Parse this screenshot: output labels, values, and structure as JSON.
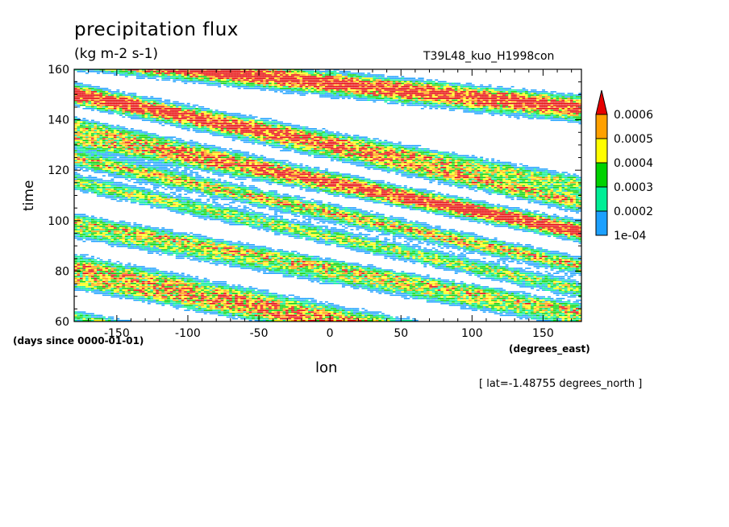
{
  "chart_data": {
    "type": "heatmap",
    "title": "precipitation flux",
    "units": "(kg m-2 s-1)",
    "run_id": "T39L48_kuo_H1998con",
    "xlabel": "lon",
    "x_units": "(degrees_east)",
    "ylabel": "time",
    "y_units": "(days since 0000-01-01)",
    "annotation": "[ lat=-1.48755 degrees_north ]",
    "xlim": [
      -180,
      177
    ],
    "ylim": [
      60,
      160
    ],
    "x_ticks": [
      -150,
      -100,
      -50,
      0,
      50,
      100,
      150
    ],
    "x_tick_labels": [
      "-150",
      "-100",
      "-50",
      "0",
      "50",
      "100",
      "150"
    ],
    "y_ticks": [
      60,
      80,
      100,
      120,
      140,
      160
    ],
    "y_tick_labels": [
      "60",
      "80",
      "100",
      "120",
      "140",
      "160"
    ],
    "colorbar": {
      "levels": [
        0.0001,
        0.0002,
        0.0003,
        0.0004,
        0.0005,
        0.0006
      ],
      "labels": [
        "1e-04",
        "0.0002",
        "0.0003",
        "0.0004",
        "0.0005",
        "0.0006"
      ],
      "colors": [
        "#1ca0ff",
        "#00ee96",
        "#00d200",
        "#fffe00",
        "#ffa000",
        "#e60000"
      ],
      "extend": "max"
    },
    "bands": [
      {
        "t0": 150,
        "lon0": -180,
        "slope": -0.12,
        "width": 3.5,
        "amp": 1.0
      },
      {
        "t0": 132,
        "lon0": -180,
        "slope": -0.1,
        "width": 3.0,
        "amp": 0.9
      },
      {
        "t0": 121,
        "lon0": -150,
        "slope": -0.12,
        "width": 3.0,
        "amp": 1.0
      },
      {
        "t0": 95,
        "lon0": -170,
        "slope": -0.1,
        "width": 3.0,
        "amp": 0.7
      },
      {
        "t0": 82,
        "lon0": -180,
        "slope": -0.11,
        "width": 4.0,
        "amp": 1.0
      },
      {
        "t0": 70,
        "lon0": -120,
        "slope": -0.1,
        "width": 3.0,
        "amp": 0.8
      },
      {
        "t0": 62,
        "lon0": -180,
        "slope": -0.1,
        "width": 2.0,
        "amp": 0.7
      },
      {
        "t0": 155,
        "lon0": 0,
        "slope": -0.05,
        "width": 3.0,
        "amp": 0.7
      },
      {
        "t0": 148,
        "lon0": 100,
        "slope": -0.06,
        "width": 4.0,
        "amp": 1.1
      },
      {
        "t0": 126,
        "lon0": 60,
        "slope": -0.1,
        "width": 3.0,
        "amp": 0.8
      },
      {
        "t0": 110,
        "lon0": 50,
        "slope": -0.12,
        "width": 3.0,
        "amp": 0.9
      },
      {
        "t0": 84,
        "lon0": 80,
        "slope": -0.12,
        "width": 3.0,
        "amp": 0.8
      },
      {
        "t0": 68,
        "lon0": 140,
        "slope": -0.1,
        "width": 2.5,
        "amp": 0.8
      }
    ]
  }
}
